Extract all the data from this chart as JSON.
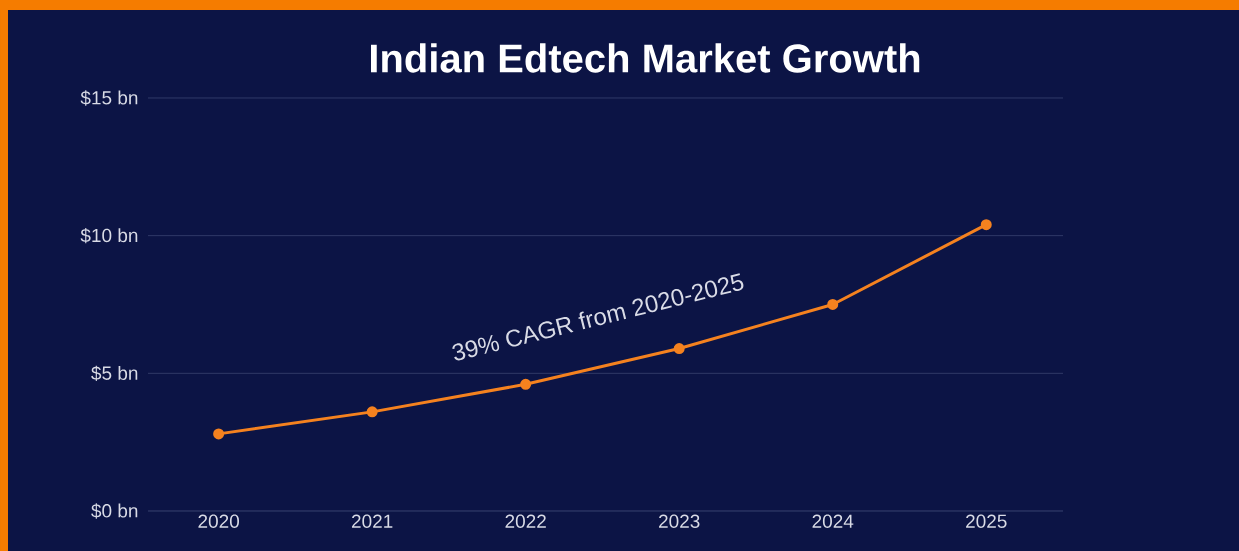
{
  "chart_data": {
    "type": "line",
    "title": "Indian Edtech Market Growth",
    "categories": [
      "2020",
      "2021",
      "2022",
      "2023",
      "2024",
      "2025"
    ],
    "values": [
      2.8,
      3.6,
      4.6,
      5.9,
      7.5,
      10.4
    ],
    "color": "#f5821f",
    "ylim": [
      0,
      15
    ],
    "yticks": [
      {
        "value": 0,
        "label": "$0 bn"
      },
      {
        "value": 5,
        "label": "$5 bn"
      },
      {
        "value": 10,
        "label": "$10 bn"
      },
      {
        "value": 15,
        "label": "$15 bn"
      }
    ],
    "grid": "y",
    "marker": "circle",
    "line_style": "solid",
    "annotations": [
      "39% CAGR from 2020-2025"
    ]
  }
}
